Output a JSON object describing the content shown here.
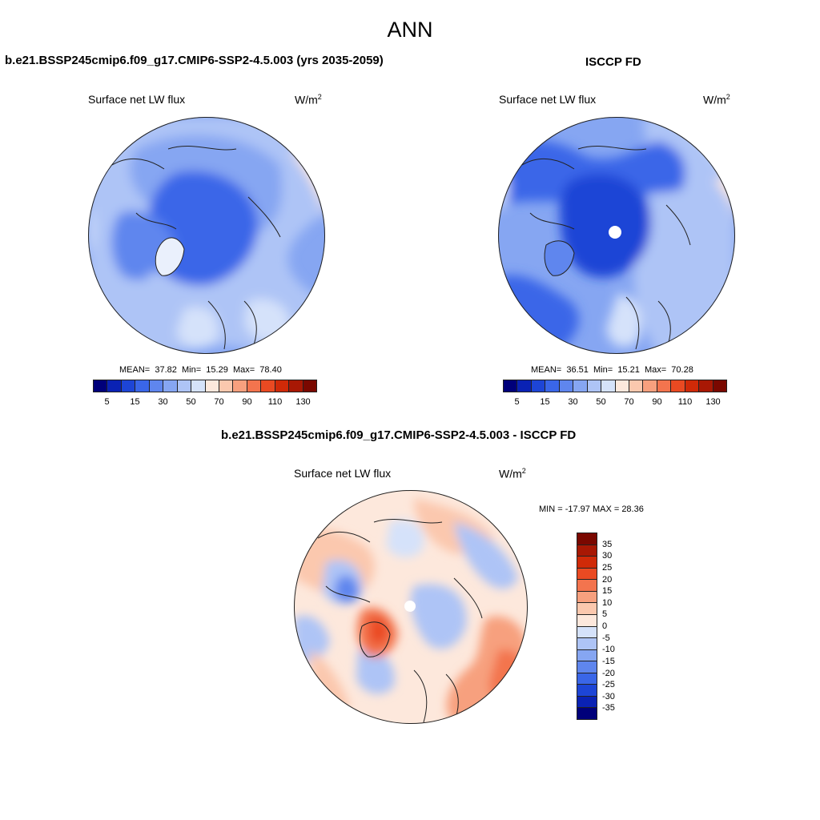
{
  "title": "ANN",
  "panels": {
    "model": {
      "title": "b.e21.BSSP245cmip6.f09_g17.CMIP6-SSP2-4.5.003 (yrs 2035-2059)",
      "variable": "Surface net LW flux",
      "units": "W/m",
      "units_exp": "2",
      "stats": {
        "mean_label": "MEAN=",
        "mean": "37.82",
        "min_label": "Min=",
        "min": "15.29",
        "max_label": "Max=",
        "max": "78.40"
      }
    },
    "obs": {
      "title": "ISCCP FD",
      "variable": "Surface net LW flux",
      "units": "W/m",
      "units_exp": "2",
      "stats": {
        "mean_label": "MEAN=",
        "mean": "36.51",
        "min_label": "Min=",
        "min": "15.21",
        "max_label": "Max=",
        "max": "70.28"
      }
    },
    "diff": {
      "title": "b.e21.BSSP245cmip6.f09_g17.CMIP6-SSP2-4.5.003 - ISCCP FD",
      "variable": "Surface net LW flux",
      "units": "W/m",
      "units_exp": "2",
      "stats_text": "MIN = -17.97 MAX =  28.36"
    }
  },
  "colorbar_main": {
    "colors": [
      "#00007a",
      "#0a22b4",
      "#1d45d6",
      "#3a66e8",
      "#5f86ee",
      "#86a6f2",
      "#aec4f6",
      "#d5e2fa",
      "#fde8dc",
      "#fbc8ae",
      "#f7a07e",
      "#f3744e",
      "#ea4a22",
      "#d02a08",
      "#a81804",
      "#7a0800"
    ],
    "labels": [
      "5",
      "15",
      "30",
      "50",
      "70",
      "90",
      "110",
      "130"
    ]
  },
  "colorbar_diff": {
    "colors": [
      "#7a0800",
      "#a81804",
      "#d02a08",
      "#ea4a22",
      "#f3744e",
      "#f7a07e",
      "#fbc8ae",
      "#fde8dc",
      "#d5e2fa",
      "#aec4f6",
      "#86a6f2",
      "#5f86ee",
      "#3a66e8",
      "#1d45d6",
      "#0a22b4",
      "#00007a"
    ],
    "labels": [
      "35",
      "30",
      "25",
      "20",
      "15",
      "10",
      "5",
      "0",
      "-5",
      "-10",
      "-15",
      "-20",
      "-25",
      "-30",
      "-35"
    ]
  }
}
